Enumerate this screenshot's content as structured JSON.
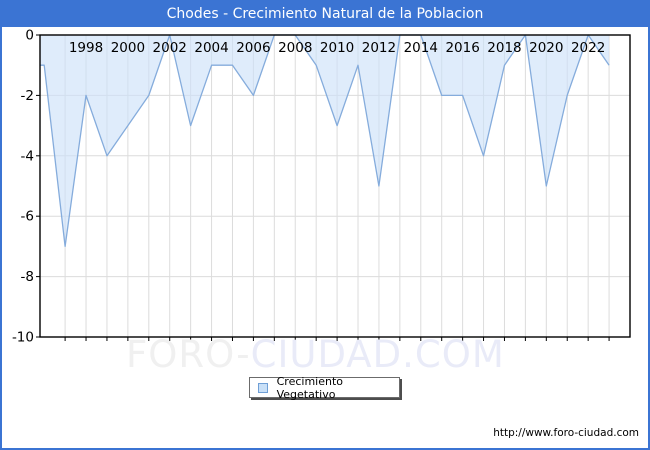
{
  "window": {
    "title": "Chodes - Crecimiento Natural de la Poblacion"
  },
  "chart_data": {
    "type": "area",
    "title": "Chodes - Crecimiento Natural de la Poblacion",
    "x": [
      1996,
      1997,
      1998,
      1999,
      2000,
      2001,
      2002,
      2003,
      2004,
      2005,
      2006,
      2007,
      2008,
      2009,
      2010,
      2011,
      2012,
      2013,
      2014,
      2015,
      2016,
      2017,
      2018,
      2019,
      2020,
      2021,
      2022,
      2023
    ],
    "series": [
      {
        "name": "Crecimiento Vegetativo",
        "values": [
          -1,
          -7,
          -2,
          -4,
          -3,
          -2,
          0,
          -3,
          -1,
          -1,
          -2,
          0,
          0,
          -1,
          -3,
          -1,
          -5,
          0,
          0,
          -2,
          -2,
          -4,
          -1,
          0,
          -5,
          -2,
          0,
          -1
        ]
      }
    ],
    "xticks": [
      1998,
      2000,
      2002,
      2004,
      2006,
      2008,
      2010,
      2012,
      2014,
      2016,
      2018,
      2020,
      2022
    ],
    "yticks": [
      0,
      -2,
      -4,
      -6,
      -8,
      -10
    ],
    "xlim": [
      1995.8,
      2024.0
    ],
    "ylim": [
      -10,
      0
    ],
    "grid": true,
    "x_label_position": "top-inside",
    "legend_position": "bottom-center",
    "colors": {
      "frame_blue": "#3b74d3",
      "line": "#85acdc",
      "fill": "#cce0f8",
      "fill_opacity": 0.62,
      "grid": "#dcdcdc",
      "plot_border": "#000000",
      "text": "#000000"
    }
  },
  "legend": {
    "label": "Crecimiento Vegetativo"
  },
  "watermark": {
    "part1": "FORO-",
    "part2": "CIUDAD.COM"
  },
  "footer": {
    "url": "http://www.foro-ciudad.com"
  }
}
